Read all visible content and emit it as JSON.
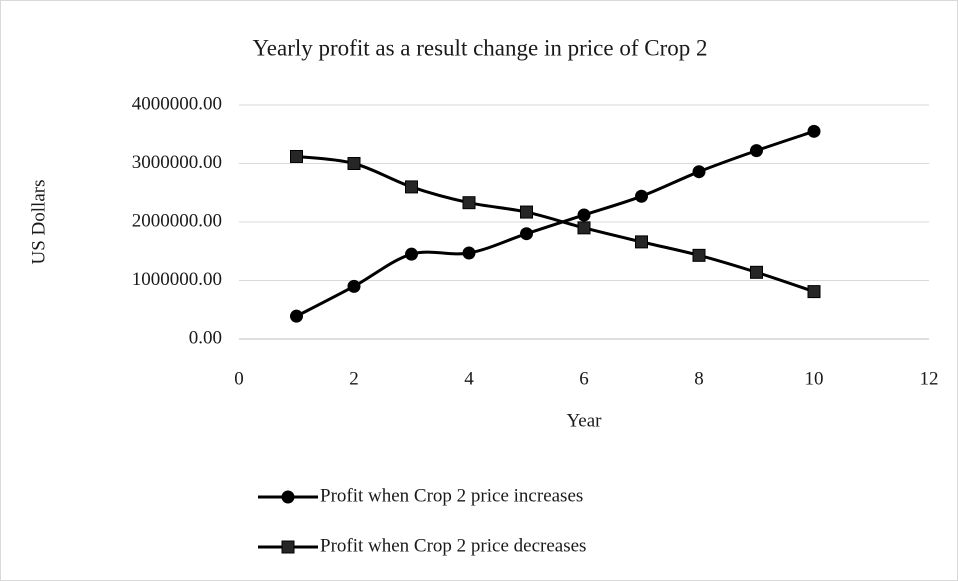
{
  "chart_data": {
    "type": "line",
    "title": "Yearly profit as a result change in price of Crop 2",
    "x_label": "Year",
    "y_label": "US Dollars",
    "xlim": [
      0,
      12
    ],
    "xticks": [
      0,
      2,
      4,
      6,
      8,
      10,
      12
    ],
    "ylim": [
      0,
      4000000
    ],
    "yticks": [
      {
        "value": 0,
        "label": "0.00"
      },
      {
        "value": 1000000,
        "label": "1000000.00"
      },
      {
        "value": 2000000,
        "label": "2000000.00"
      },
      {
        "value": 3000000,
        "label": "3000000.00"
      },
      {
        "value": 4000000,
        "label": "4000000.00"
      }
    ],
    "grid": true,
    "smooth": true,
    "legend": "bottom",
    "x": [
      1,
      2,
      3,
      4,
      5,
      6,
      7,
      8,
      9,
      10
    ],
    "series": [
      {
        "name": "Profit when Crop 2 price increases",
        "color": "#000000",
        "marker": "circle",
        "values": [
          390000,
          900000,
          1450000,
          1470000,
          1800000,
          2120000,
          2440000,
          2860000,
          3220000,
          3550000
        ]
      },
      {
        "name": "Profit when Crop 2 price decreases",
        "color": "#000000",
        "marker": "square",
        "values": [
          3120000,
          3000000,
          2600000,
          2330000,
          2170000,
          1900000,
          1660000,
          1430000,
          1140000,
          810000
        ]
      }
    ]
  }
}
